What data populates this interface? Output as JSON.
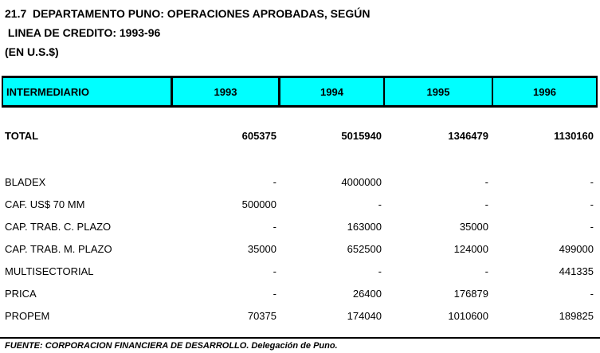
{
  "title": {
    "line1": "21.7  DEPARTAMENTO PUNO: OPERACIONES APROBADAS, SEGÚN",
    "line2": " LINEA DE CREDITO: 1993-96",
    "line3": "(EN U.S.$)"
  },
  "table": {
    "header": {
      "label": "INTERMEDIARIO",
      "years": [
        "1993",
        "1994",
        "1995",
        "1996"
      ]
    },
    "total_row": {
      "label": "TOTAL",
      "values": [
        "605375",
        "5015940",
        "1346479",
        "1130160"
      ]
    },
    "rows": [
      {
        "label": "BLADEX",
        "values": [
          "-",
          "4000000",
          "-",
          "-"
        ]
      },
      {
        "label": "CAF. US$ 70 MM",
        "values": [
          "500000",
          "-",
          "-",
          "-"
        ]
      },
      {
        "label": "CAP. TRAB. C. PLAZO",
        "values": [
          "-",
          "163000",
          "35000",
          "-"
        ]
      },
      {
        "label": "CAP. TRAB. M. PLAZO",
        "values": [
          "35000",
          "652500",
          "124000",
          "499000"
        ]
      },
      {
        "label": "MULTISECTORIAL",
        "values": [
          "-",
          "-",
          "-",
          "441335"
        ]
      },
      {
        "label": "PRICA",
        "values": [
          "-",
          "26400",
          "176879",
          "-"
        ]
      },
      {
        "label": "PROPEM",
        "values": [
          "70375",
          "174040",
          "1010600",
          "189825"
        ]
      }
    ]
  },
  "footer": {
    "source": "FUENTE: CORPORACION FINANCIERA DE DESARROLLO. Delegación de Puno."
  },
  "colors": {
    "header_bg": "#00FFFF",
    "border": "#000000",
    "text": "#000000",
    "background": "#FFFFFF"
  }
}
